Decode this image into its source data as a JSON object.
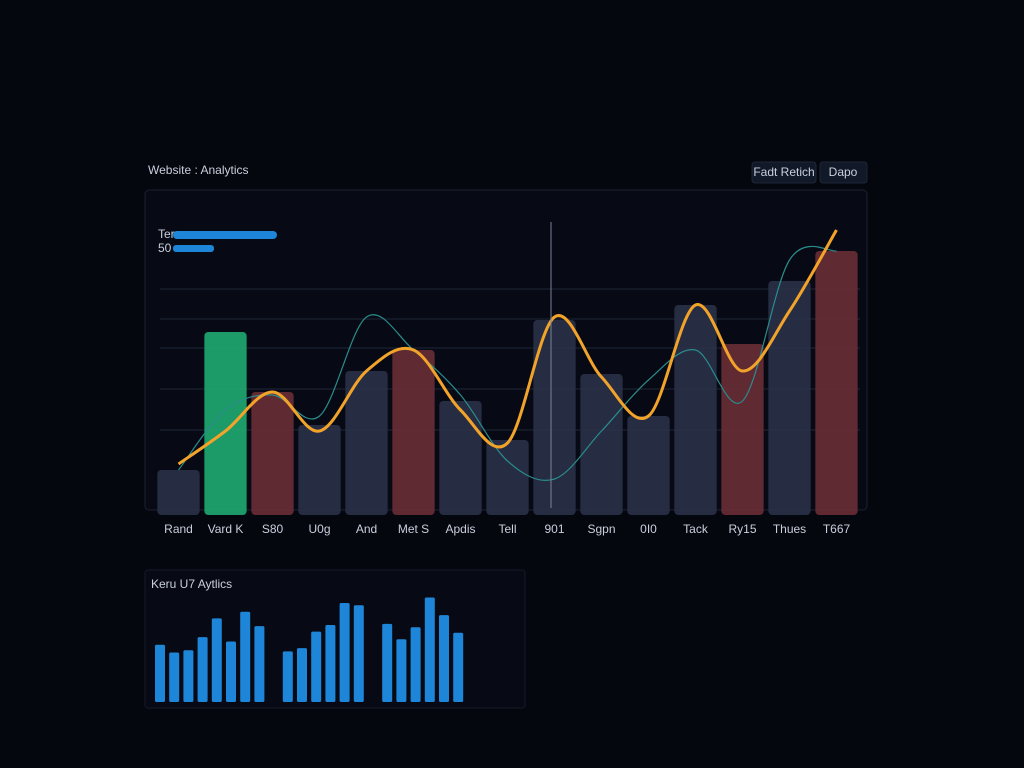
{
  "header": {
    "title": "Website : Analytics",
    "buttons": [
      "Fadt Retich",
      "Dapo"
    ]
  },
  "chart_data": [
    {
      "type": "bar-line",
      "legend": [
        "Ter",
        "50"
      ],
      "categories": [
        "Rand",
        "Vard K",
        "S80",
        "U0g",
        "And",
        "Met S",
        "Apdis",
        "Tell",
        "901",
        "Sgpn",
        "0I0",
        "Tack",
        "Ry15",
        "Thues",
        "T667"
      ],
      "ylim": [
        0,
        100
      ],
      "grid": true,
      "bars": {
        "values": [
          15,
          61,
          41,
          30,
          48,
          55,
          38,
          25,
          65,
          47,
          33,
          70,
          57,
          78,
          88
        ],
        "colors": [
          "#2a3148",
          "#1faa70",
          "#6a2e36",
          "#2a3148",
          "#2a3148",
          "#6a2e36",
          "#2a3148",
          "#2a3148",
          "#2a3148",
          "#2a3148",
          "#2a3148",
          "#2a3148",
          "#6a2e36",
          "#2a3148",
          "#6a2e36"
        ]
      },
      "series": [
        {
          "color": "#f2a32a",
          "values": [
            17,
            28,
            41,
            28,
            48,
            55,
            35,
            24,
            66,
            46,
            33,
            70,
            48,
            68,
            95
          ]
        },
        {
          "color": "#2a8c8c",
          "values": [
            15,
            35,
            40,
            33,
            66,
            55,
            40,
            18,
            12,
            28,
            45,
            55,
            38,
            85,
            88
          ]
        }
      ]
    },
    {
      "type": "bar",
      "title": "Keru U7 Aytlics",
      "ylim": [
        0,
        100
      ],
      "color": "#1e86d8",
      "values": [
        52,
        45,
        47,
        59,
        76,
        55,
        82,
        69,
        null,
        46,
        49,
        64,
        70,
        90,
        88,
        null,
        71,
        57,
        68,
        95,
        79,
        63
      ]
    }
  ]
}
